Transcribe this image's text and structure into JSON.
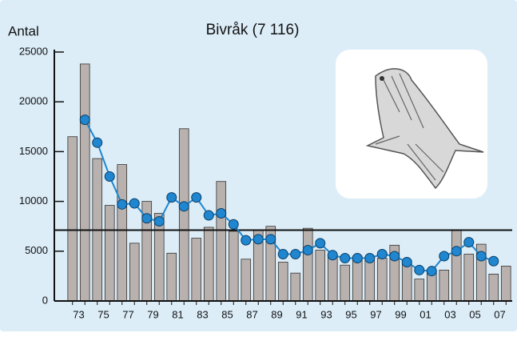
{
  "chart_data": {
    "type": "bar_line",
    "title": "Bivråk (7 116)",
    "ylabel": "Antal",
    "categories": [
      "73",
      null,
      "75",
      null,
      "77",
      null,
      "79",
      null,
      "81",
      null,
      "83",
      null,
      "85",
      null,
      "87",
      null,
      "89",
      null,
      "91",
      null,
      "93",
      null,
      "95",
      null,
      "97",
      null,
      "99",
      null,
      "01",
      null,
      "03",
      null,
      "05",
      null,
      "07",
      null
    ],
    "series": [
      {
        "kind": "bar",
        "color": "#b9b1ae",
        "values": [
          16500,
          23800,
          14300,
          9600,
          13700,
          5800,
          10000,
          8800,
          4800,
          17300,
          6300,
          7400,
          12000,
          7000,
          4200,
          7100,
          7500,
          3900,
          2800,
          7300,
          5100,
          4500,
          3600,
          4500,
          4100,
          4300,
          5600,
          3900,
          2200,
          2900,
          3100,
          7100,
          4700,
          5700,
          2700,
          3500
        ]
      },
      {
        "kind": "line",
        "color": "#1f86cf",
        "values": [
          null,
          18200,
          15900,
          12500,
          9700,
          9800,
          8300,
          8000,
          10400,
          9500,
          10400,
          8600,
          8800,
          7700,
          6100,
          6200,
          6200,
          4700,
          4700,
          5100,
          5800,
          4600,
          4300,
          4300,
          4300,
          4700,
          4500,
          3900,
          3100,
          3000,
          4500,
          5000,
          5900,
          4500,
          4000,
          null
        ]
      }
    ],
    "mean_line": 7116,
    "ylim": [
      0,
      25000
    ],
    "yticks": [
      0,
      5000,
      10000,
      15000,
      20000,
      25000
    ]
  }
}
